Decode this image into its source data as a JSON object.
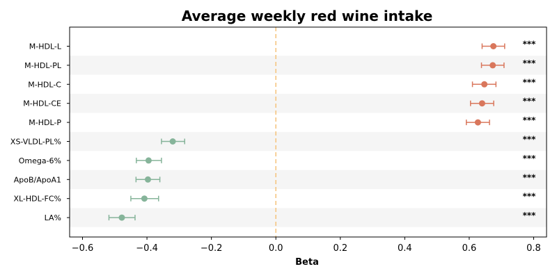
{
  "chart_data": {
    "type": "forest",
    "title": "Average weekly red wine intake",
    "xlabel": "Beta",
    "ylabel": "",
    "xlim": [
      -0.64,
      0.84
    ],
    "xticks": [
      -0.6,
      -0.4,
      -0.2,
      0.0,
      0.2,
      0.4,
      0.6,
      0.8
    ],
    "xtick_labels": [
      "−0.6",
      "−0.4",
      "−0.2",
      "0.0",
      "0.2",
      "0.4",
      "0.6",
      "0.8"
    ],
    "reference_line": 0.0,
    "grid": false,
    "alternating_row_shading": true,
    "colors": {
      "positive": "#d9775c",
      "negative": "#86b49a",
      "reference_line": "#f5c27a",
      "row_band": "#f5f5f5"
    },
    "rows": [
      {
        "label": "M-HDL-L",
        "beta": 0.675,
        "ci_low": 0.64,
        "ci_high": 0.71,
        "sig": "***",
        "direction": "positive"
      },
      {
        "label": "M-HDL-PL",
        "beta": 0.673,
        "ci_low": 0.638,
        "ci_high": 0.708,
        "sig": "***",
        "direction": "positive"
      },
      {
        "label": "M-HDL-C",
        "beta": 0.647,
        "ci_low": 0.61,
        "ci_high": 0.683,
        "sig": "***",
        "direction": "positive"
      },
      {
        "label": "M-HDL-CE",
        "beta": 0.64,
        "ci_low": 0.604,
        "ci_high": 0.676,
        "sig": "***",
        "direction": "positive"
      },
      {
        "label": "M-HDL-P",
        "beta": 0.627,
        "ci_low": 0.591,
        "ci_high": 0.663,
        "sig": "***",
        "direction": "positive"
      },
      {
        "label": "XS-VLDL-PL%",
        "beta": -0.32,
        "ci_low": -0.355,
        "ci_high": -0.283,
        "sig": "***",
        "direction": "negative"
      },
      {
        "label": "Omega-6%",
        "beta": -0.395,
        "ci_low": -0.433,
        "ci_high": -0.355,
        "sig": "***",
        "direction": "negative"
      },
      {
        "label": "ApoB/ApoA1",
        "beta": -0.397,
        "ci_low": -0.434,
        "ci_high": -0.36,
        "sig": "***",
        "direction": "negative"
      },
      {
        "label": "XL-HDL-FC%",
        "beta": -0.408,
        "ci_low": -0.45,
        "ci_high": -0.364,
        "sig": "***",
        "direction": "negative"
      },
      {
        "label": "LA%",
        "beta": -0.478,
        "ci_low": -0.518,
        "ci_high": -0.437,
        "sig": "***",
        "direction": "negative"
      }
    ]
  }
}
